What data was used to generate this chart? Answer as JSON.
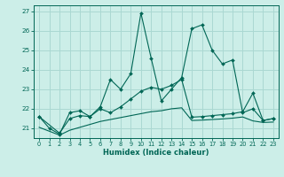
{
  "xlabel": "Humidex (Indice chaleur)",
  "background_color": "#cceee8",
  "grid_color": "#aad8d2",
  "line_color": "#006655",
  "xlim": [
    -0.5,
    23.5
  ],
  "ylim": [
    20.5,
    27.3
  ],
  "yticks": [
    21,
    22,
    23,
    24,
    25,
    26,
    27
  ],
  "xticks": [
    0,
    1,
    2,
    3,
    4,
    5,
    6,
    7,
    8,
    9,
    10,
    11,
    12,
    13,
    14,
    15,
    16,
    17,
    18,
    19,
    20,
    21,
    22,
    23
  ],
  "s1_x": [
    0,
    1,
    2,
    3,
    4,
    5,
    6,
    7,
    8,
    9,
    10,
    11,
    12,
    13,
    14,
    15,
    16,
    17,
    18,
    19,
    20,
    21,
    22,
    23
  ],
  "s1_y": [
    21.6,
    21.0,
    20.7,
    21.8,
    21.9,
    21.6,
    22.1,
    23.5,
    23.0,
    23.8,
    26.9,
    24.6,
    22.4,
    23.0,
    23.6,
    26.1,
    26.3,
    25.0,
    24.3,
    24.5,
    21.8,
    22.0,
    21.4,
    21.5
  ],
  "s2_x": [
    0,
    2,
    3,
    4,
    5,
    6,
    7,
    8,
    9,
    10,
    11,
    12,
    13,
    14,
    15,
    16,
    17,
    18,
    19,
    20,
    21,
    22,
    23
  ],
  "s2_y": [
    21.6,
    20.75,
    21.5,
    21.65,
    21.6,
    22.0,
    21.8,
    22.1,
    22.5,
    22.9,
    23.1,
    23.0,
    23.2,
    23.5,
    21.57,
    21.6,
    21.65,
    21.7,
    21.75,
    21.85,
    22.8,
    21.4,
    21.5
  ],
  "s3_x": [
    0,
    2,
    3,
    4,
    5,
    6,
    7,
    8,
    9,
    10,
    11,
    12,
    13,
    14,
    15,
    16,
    17,
    18,
    19,
    20,
    21,
    22,
    23
  ],
  "s3_y": [
    21.05,
    20.65,
    20.9,
    21.05,
    21.2,
    21.35,
    21.45,
    21.55,
    21.65,
    21.75,
    21.85,
    21.9,
    22.0,
    22.05,
    21.4,
    21.42,
    21.45,
    21.48,
    21.52,
    21.58,
    21.38,
    21.3,
    21.32
  ]
}
